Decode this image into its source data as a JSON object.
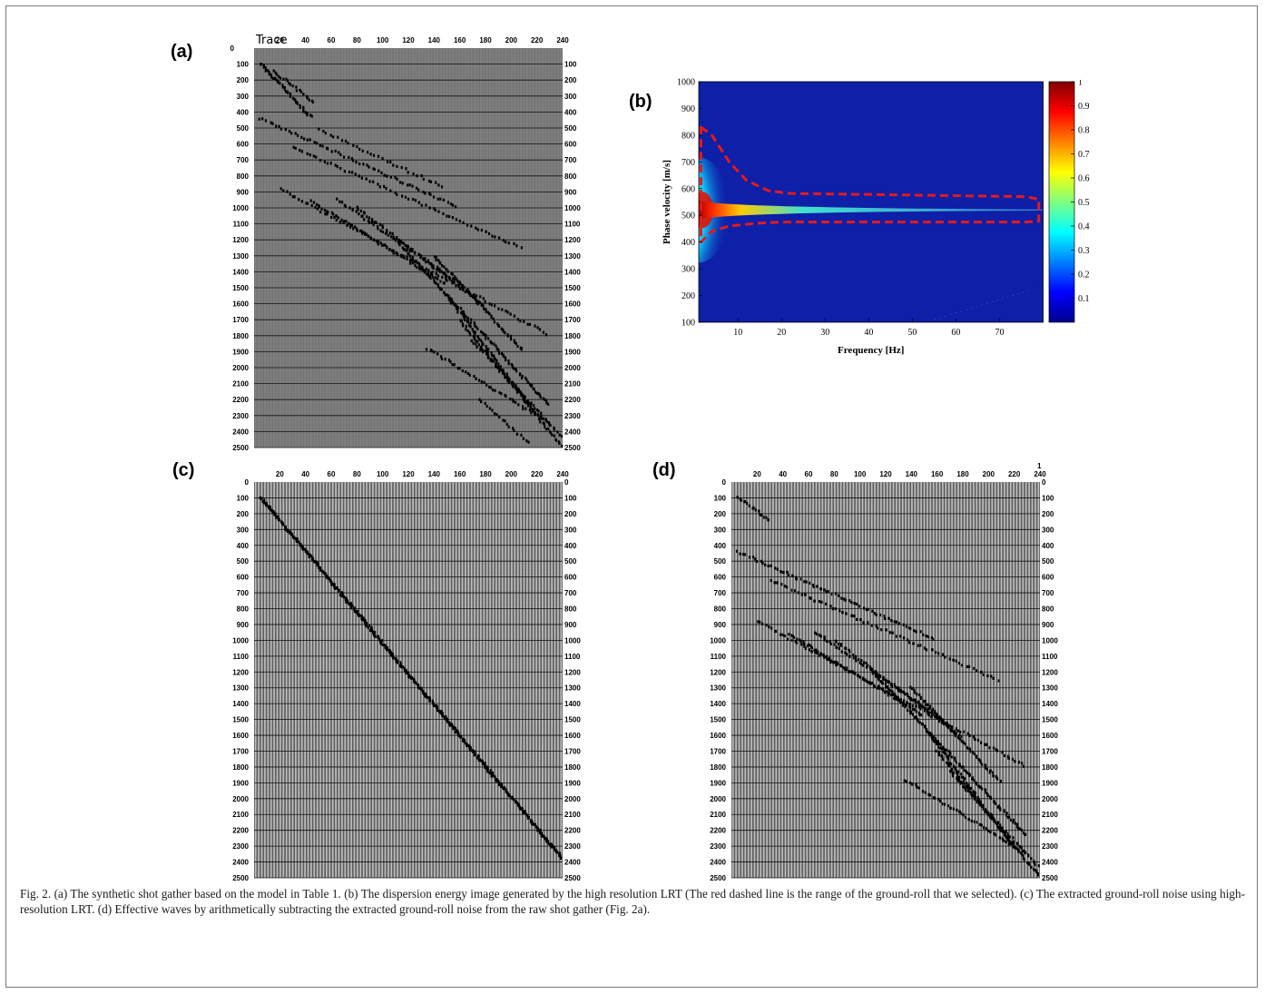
{
  "panels": {
    "a": {
      "label": "(a)",
      "x_title": "Trace",
      "x_ticks": [
        "20",
        "40",
        "60",
        "80",
        "100",
        "120",
        "140",
        "160",
        "180",
        "200",
        "220",
        "240"
      ],
      "y_ticks": [
        "100",
        "200",
        "300",
        "400",
        "500",
        "600",
        "700",
        "800",
        "900",
        "1000",
        "1100",
        "1200",
        "1300",
        "1400",
        "1500",
        "1600",
        "1700",
        "1800",
        "1900",
        "2000",
        "2100",
        "2200",
        "2300",
        "2400",
        "2500"
      ],
      "y_left_top": "0"
    },
    "b": {
      "label": "(b)"
    },
    "c": {
      "label": "(c)",
      "x_ticks": [
        "20",
        "40",
        "60",
        "80",
        "100",
        "120",
        "140",
        "160",
        "180",
        "200",
        "220",
        "240"
      ],
      "y_ticks": [
        "0",
        "100",
        "200",
        "300",
        "400",
        "500",
        "600",
        "700",
        "800",
        "900",
        "1000",
        "1100",
        "1200",
        "1300",
        "1400",
        "1500",
        "1600",
        "1700",
        "1800",
        "1900",
        "2000",
        "2100",
        "2200",
        "2300",
        "2400",
        "2500"
      ]
    },
    "d": {
      "label": "(d)",
      "x_ticks": [
        "20",
        "40",
        "60",
        "80",
        "100",
        "120",
        "140",
        "160",
        "180",
        "200",
        "220",
        "240"
      ],
      "x_corner": "1",
      "y_ticks": [
        "0",
        "100",
        "200",
        "300",
        "400",
        "500",
        "600",
        "700",
        "800",
        "900",
        "1000",
        "1100",
        "1200",
        "1300",
        "1400",
        "1500",
        "1600",
        "1700",
        "1800",
        "1900",
        "2000",
        "2100",
        "2200",
        "2300",
        "2400",
        "2500"
      ]
    }
  },
  "chart_data": {
    "type": "heatmap",
    "xlabel": "Frequency [Hz]",
    "ylabel": "Phase velocity [m/s]",
    "xlim": [
      1,
      80
    ],
    "ylim": [
      100,
      1000
    ],
    "x_ticks": [
      10,
      20,
      30,
      40,
      50,
      60,
      70
    ],
    "y_ticks": [
      100,
      200,
      300,
      400,
      500,
      600,
      700,
      800,
      900,
      1000
    ],
    "colorbar": {
      "min": 0,
      "max": 1,
      "ticks": [
        "0.1",
        "0.2",
        "0.3",
        "0.4",
        "0.5",
        "0.6",
        "0.7",
        "0.8",
        "0.9",
        "1"
      ]
    },
    "energy_ridge": {
      "velocity": 520
    },
    "selected_range_outline": {
      "color": "#e41a1c",
      "style": "dashed",
      "upper": [
        [
          1.5,
          830
        ],
        [
          4,
          800
        ],
        [
          8,
          700
        ],
        [
          12,
          630
        ],
        [
          17,
          592
        ],
        [
          22,
          582
        ],
        [
          76,
          570
        ],
        [
          79,
          560
        ]
      ],
      "lower": [
        [
          1.5,
          400
        ],
        [
          4,
          440
        ],
        [
          8,
          460
        ],
        [
          14,
          470
        ],
        [
          20,
          475
        ],
        [
          76,
          475
        ],
        [
          79,
          478
        ]
      ]
    }
  },
  "caption": "Fig. 2. (a) The synthetic shot gather based on the model in Table 1. (b) The dispersion energy image generated by the high resolution LRT (The red dashed line is the range of the ground-roll that we selected). (c) The extracted ground-roll noise using high-resolution LRT. (d) Effective waves by arithmetically subtracting the extracted ground-roll noise from the raw shot gather (Fig. 2a)."
}
